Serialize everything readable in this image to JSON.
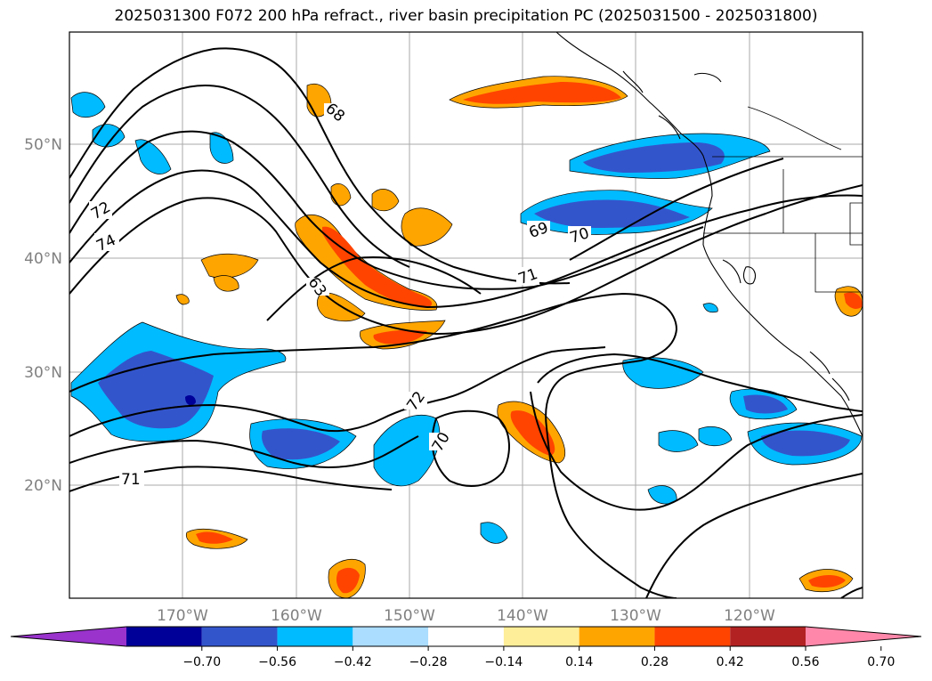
{
  "title": "2025031300 F072 200 hPa refract., river basin precipitation PC (2025031500 - 2025031800)",
  "latitude_labels": [
    "50°N",
    "40°N",
    "30°N",
    "20°N"
  ],
  "longitude_labels": [
    "170°W",
    "160°W",
    "150°W",
    "140°W",
    "130°W",
    "120°W"
  ],
  "contour_labels": [
    "68",
    "72",
    "74",
    "63",
    "69",
    "70",
    "71",
    "72",
    "70",
    "71"
  ],
  "colorbar": {
    "colors": [
      "#9933cc",
      "#000099",
      "#3355cc",
      "#00bbff",
      "#aaddff",
      "#ffffff",
      "#ffee99",
      "#ffa500",
      "#ff4400",
      "#b22222",
      "#ff88aa"
    ],
    "tick_labels": [
      "−0.70",
      "−0.56",
      "−0.42",
      "−0.28",
      "−0.14",
      "0.14",
      "0.28",
      "0.42",
      "0.56",
      "0.70"
    ]
  }
}
